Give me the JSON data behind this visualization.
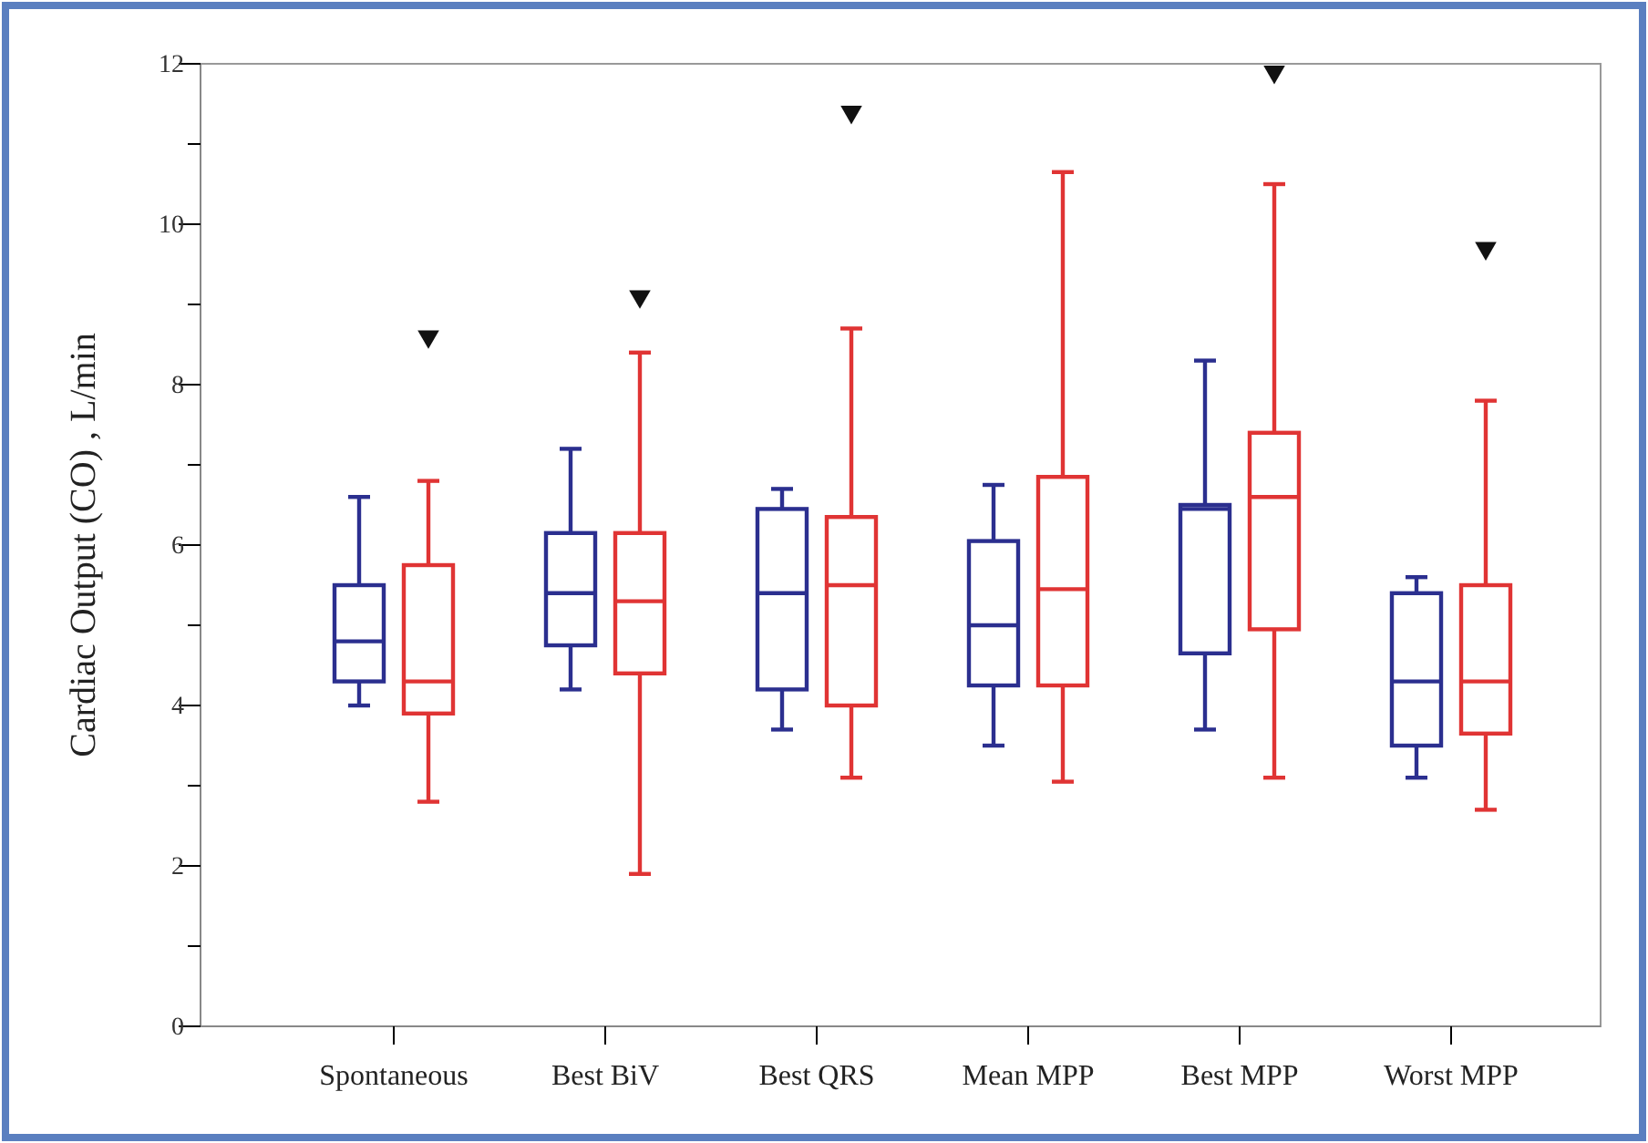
{
  "chart_data": {
    "type": "box",
    "ylabel": "Cardiac Output (CO) , L/min",
    "categories": [
      "Spontaneous",
      "Best BiV",
      "Best QRS",
      "Mean MPP",
      "Best MPP",
      "Worst MPP"
    ],
    "ylim": [
      0,
      12
    ],
    "yticks": [
      0,
      {
        "value": 1,
        "label": null
      },
      2,
      {
        "value": 3,
        "label": null
      },
      4,
      {
        "value": 5,
        "label": null
      },
      6,
      {
        "value": 7,
        "label": null
      },
      8,
      {
        "value": 9,
        "label": null
      },
      10,
      {
        "value": 11,
        "label": null
      },
      12
    ],
    "marker": "triangle",
    "series": [
      {
        "color": "#2b2f8f",
        "boxes": [
          {
            "low": 4.0,
            "q1": 4.3,
            "median": 4.8,
            "q3": 5.5,
            "high": 6.6
          },
          {
            "low": 4.2,
            "q1": 4.75,
            "median": 5.4,
            "q3": 6.15,
            "high": 7.2
          },
          {
            "low": 3.7,
            "q1": 4.2,
            "median": 5.4,
            "q3": 6.45,
            "high": 6.7
          },
          {
            "low": 3.5,
            "q1": 4.25,
            "median": 5.0,
            "q3": 6.05,
            "high": 6.75
          },
          {
            "low": 3.7,
            "q1": 4.65,
            "median": 6.45,
            "q3": 6.5,
            "high": 8.3
          },
          {
            "low": 3.1,
            "q1": 3.5,
            "median": 4.3,
            "q3": 5.4,
            "high": 5.6
          }
        ]
      },
      {
        "color": "#e03434",
        "boxes": [
          {
            "low": 2.8,
            "q1": 3.9,
            "median": 4.3,
            "q3": 5.75,
            "high": 6.8,
            "outliers": [
              8.6
            ]
          },
          {
            "low": 1.9,
            "q1": 4.4,
            "median": 5.3,
            "q3": 6.15,
            "high": 8.4,
            "outliers": [
              9.1
            ]
          },
          {
            "low": 3.1,
            "q1": 4.0,
            "median": 5.5,
            "q3": 6.35,
            "high": 8.7,
            "outliers": [
              11.4
            ]
          },
          {
            "low": 3.05,
            "q1": 4.25,
            "median": 5.45,
            "q3": 6.85,
            "high": 10.65
          },
          {
            "low": 3.1,
            "q1": 4.95,
            "median": 6.6,
            "q3": 7.4,
            "high": 10.5,
            "outliers": [
              11.9
            ]
          },
          {
            "low": 2.7,
            "q1": 3.65,
            "median": 4.3,
            "q3": 5.5,
            "high": 7.8,
            "outliers": [
              9.7
            ]
          }
        ]
      }
    ]
  }
}
